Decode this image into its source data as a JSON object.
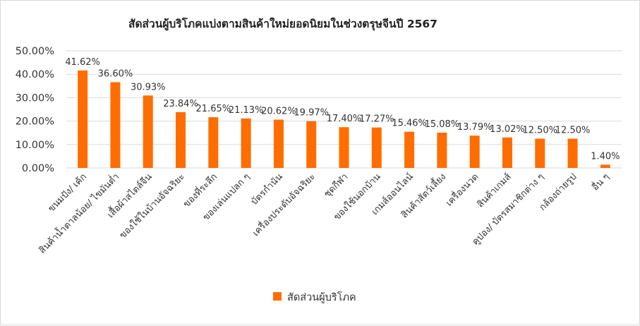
{
  "chart_data": {
    "type": "bar",
    "title": "สัดส่วนผู้บริโภคแบ่งตามสินค้าใหม่ยอดนิยมในช่วงตรุษจีนปี 2567",
    "categories": [
      "ขนมปัง/ เค้ก",
      "สินค้าน้ำตาลน้อย/ ไขมันต่ำ",
      "เสื้อผ้าสไตล์จีน",
      "ของใช้ในบ้านอัจฉริยะ",
      "ของที่ระลึก",
      "ของเล่นแปลก ๆ",
      "บัตรกำนัน",
      "เครื่องประดับอัจฉริยะ",
      "ชุดกีฬา",
      "ของใช้นอกบ้าน",
      "เกมส์ออนไลน์",
      "สินค้าสัตว์เลี้ยง",
      "เครื่องนวด",
      "สินค้าเกมส์",
      "คูปอง/ บัตรสมาชิกต่าง ๆ",
      "กล้องถ่ายรูป",
      "อื่น ๆ"
    ],
    "series": [
      {
        "name": "สัดส่วนผู้บริโภค",
        "values": [
          41.62,
          36.6,
          30.93,
          23.84,
          21.65,
          21.13,
          20.62,
          19.97,
          17.4,
          17.27,
          15.46,
          15.08,
          13.79,
          13.02,
          12.5,
          12.5,
          1.4
        ],
        "data_labels": [
          "41.62%",
          "36.60%",
          "30.93%",
          "23.84%",
          "21.65%",
          "21.13%",
          "20.62%",
          "19.97%",
          "17.40%",
          "17.27%",
          "15.46%",
          "15.08%",
          "13.79%",
          "13.02%",
          "12.50%",
          "12.50%",
          "1.40%"
        ]
      }
    ],
    "y_tick_labels": [
      "0.00%",
      "10.00%",
      "20.00%",
      "30.00%",
      "40.00%",
      "50.00%"
    ],
    "ylim": [
      0,
      50
    ],
    "y_unit": "percent",
    "grid": true,
    "legend_position": "bottom",
    "bar_color": "#FF6D00",
    "grid_color": "#d9d9d9"
  }
}
